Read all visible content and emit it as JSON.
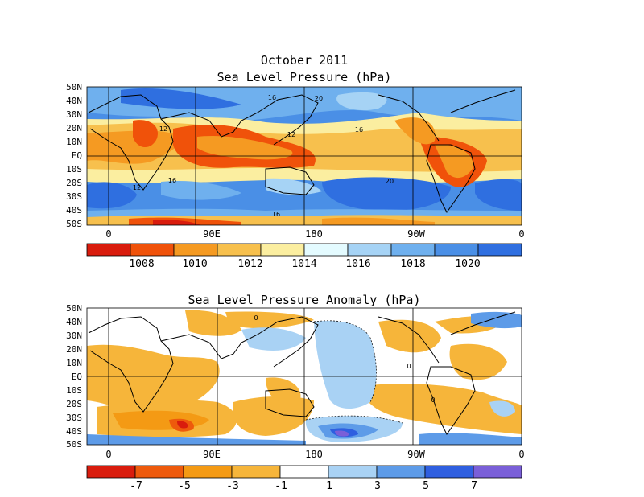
{
  "panel1": {
    "title_line1": "October 2011",
    "title_line2": "Sea Level Pressure (hPa)",
    "lat_labels": [
      "50N",
      "40N",
      "30N",
      "20N",
      "10N",
      "EQ",
      "10S",
      "20S",
      "30S",
      "40S",
      "50S"
    ],
    "lon_labels": [
      "0",
      "90E",
      "180",
      "90W",
      "0"
    ],
    "colorbar_colors": [
      "#d91c0d",
      "#f0520a",
      "#f59a22",
      "#f7c04d",
      "#fbeea0",
      "#e4fbff",
      "#a6d3f5",
      "#6fb0ee",
      "#4a8fe6",
      "#2f6fe0"
    ],
    "colorbar_labels": [
      "1008",
      "1010",
      "1012",
      "1014",
      "1016",
      "1018",
      "1020"
    ],
    "contour_labels": [
      "12",
      "16",
      "20",
      "16",
      "12",
      "12",
      "16",
      "20",
      "16"
    ]
  },
  "panel2": {
    "title": "Sea Level Pressure Anomaly (hPa)",
    "lat_labels": [
      "50N",
      "40N",
      "30N",
      "20N",
      "10N",
      "EQ",
      "10S",
      "20S",
      "30S",
      "40S",
      "50S"
    ],
    "lon_labels": [
      "0",
      "90E",
      "180",
      "90W",
      "0"
    ],
    "colorbar_colors": [
      "#d91c0d",
      "#ee5a0c",
      "#f49a14",
      "#f6b53a",
      "#ffffff",
      "#a9d2f4",
      "#5d9be8",
      "#2f5fe0",
      "#7a5fd8"
    ],
    "colorbar_labels": [
      "-7",
      "-5",
      "-3",
      "-1",
      "1",
      "3",
      "5",
      "7"
    ],
    "contour_labels": [
      "0",
      "0",
      "0"
    ]
  }
}
